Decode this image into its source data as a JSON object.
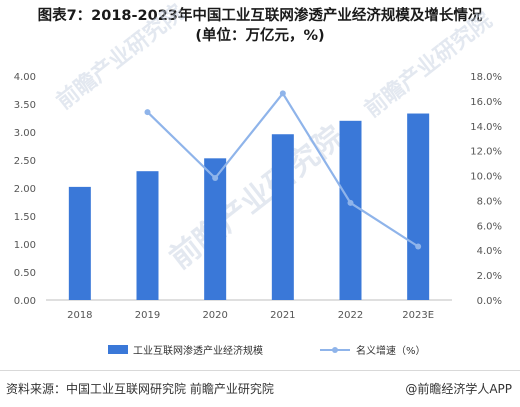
{
  "header": {
    "title_line1": "图表7：2018-2023年中国工业互联网渗透产业经济规模及增长情况",
    "title_line2": "(单位：万亿元，%)"
  },
  "chart_data": {
    "type": "bar+line",
    "categories": [
      "2018",
      "2019",
      "2020",
      "2021",
      "2022",
      "2023E"
    ],
    "series": [
      {
        "name": "工业互联网渗透产业经济规模",
        "type": "bar",
        "axis": "left",
        "values": [
          2.02,
          2.3,
          2.53,
          2.96,
          3.2,
          3.33
        ],
        "color": "#3a78d8"
      },
      {
        "name": "名义增速（%）",
        "type": "line",
        "axis": "right",
        "values": [
          null,
          15.1,
          9.8,
          16.6,
          7.8,
          4.3
        ],
        "color": "#8fb4ea"
      }
    ],
    "y_left": {
      "min": 0,
      "max": 4,
      "step": 0.5,
      "ticks": [
        "0.00",
        "0.50",
        "1.00",
        "1.50",
        "2.00",
        "2.50",
        "3.00",
        "3.50",
        "4.00"
      ]
    },
    "y_right": {
      "min": 0,
      "max": 18,
      "step": 2,
      "ticks": [
        "0.0%",
        "2.0%",
        "4.0%",
        "6.0%",
        "8.0%",
        "10.0%",
        "12.0%",
        "14.0%",
        "16.0%",
        "18.0%"
      ]
    },
    "legend_position": "bottom",
    "grid": false
  },
  "watermark": {
    "text": "前瞻产业研究院"
  },
  "footer": {
    "source": "资料来源：中国工业互联网研究院 前瞻产业研究院",
    "brand": "@前瞻经济学人APP"
  }
}
